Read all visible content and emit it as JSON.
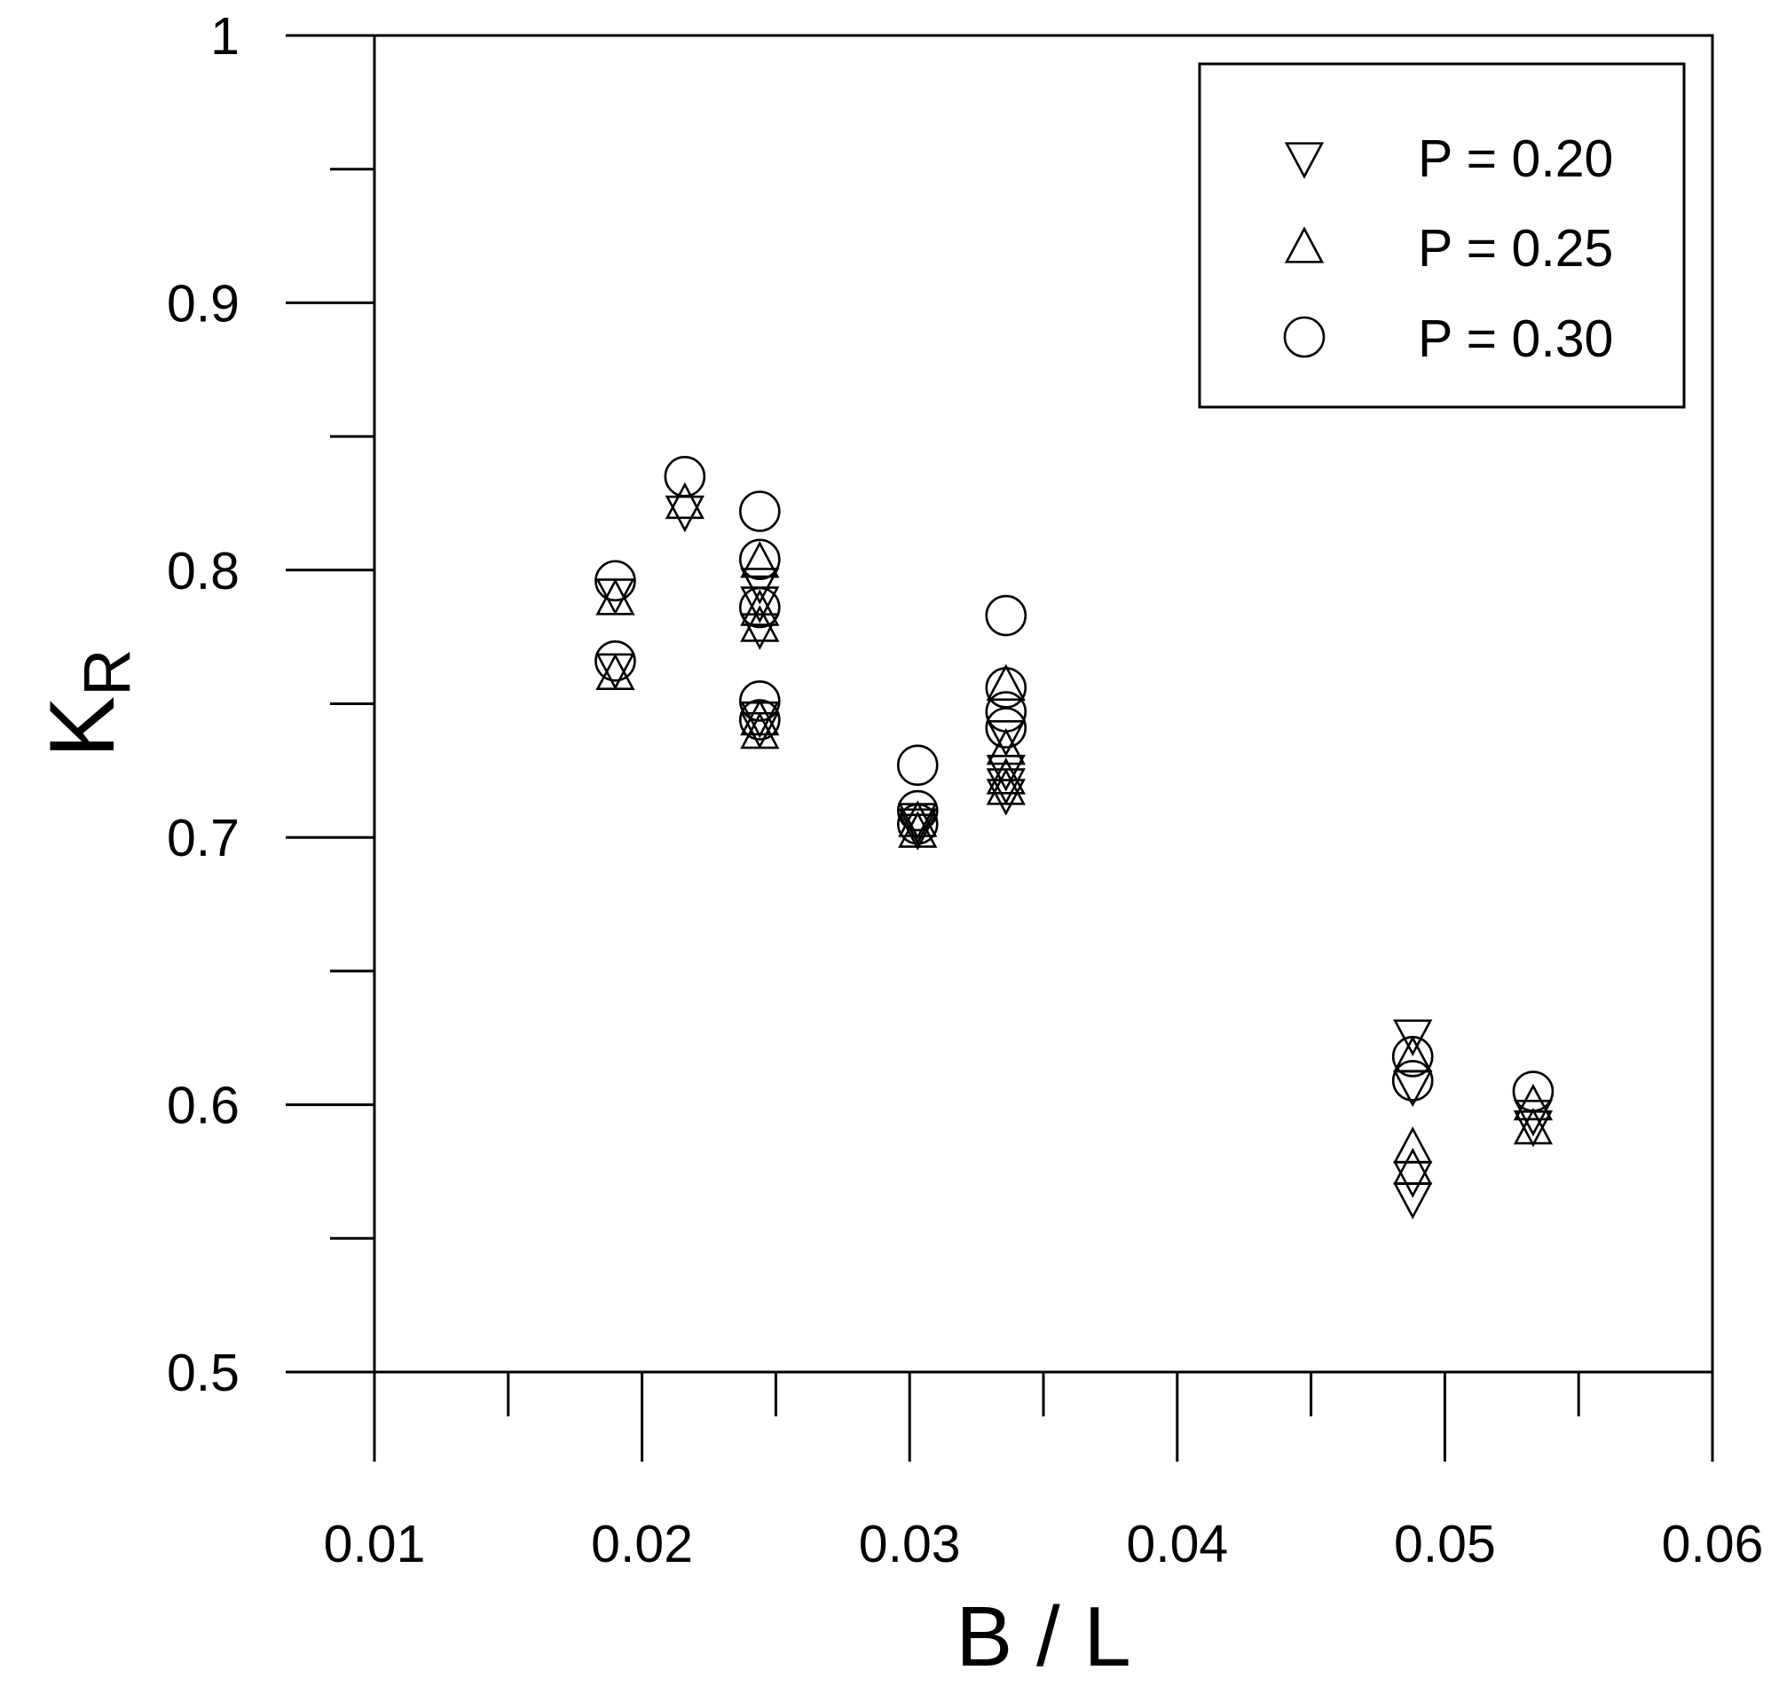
{
  "chart_data": {
    "type": "scatter",
    "title": "",
    "xlabel": "B / L",
    "ylabel": {
      "main": "K",
      "subscript": "R"
    },
    "xlim": [
      0.01,
      0.06
    ],
    "ylim": [
      0.5,
      1.0
    ],
    "x_ticks": [
      "0.01",
      "0.02",
      "0.03",
      "0.04",
      "0.05",
      "0.06"
    ],
    "y_ticks": [
      "0.5",
      "0.6",
      "0.7",
      "0.8",
      "0.9",
      "1"
    ],
    "grid": false,
    "legend_position": "top-right",
    "series": [
      {
        "name": "P = 0.20",
        "marker": "triangle-down",
        "points": [
          [
            0.019,
            0.791
          ],
          [
            0.019,
            0.763
          ],
          [
            0.0216,
            0.822
          ],
          [
            0.0244,
            0.795
          ],
          [
            0.0244,
            0.788
          ],
          [
            0.0244,
            0.778
          ],
          [
            0.0244,
            0.745
          ],
          [
            0.0244,
            0.741
          ],
          [
            0.0303,
            0.707
          ],
          [
            0.0303,
            0.705
          ],
          [
            0.0303,
            0.703
          ],
          [
            0.0336,
            0.738
          ],
          [
            0.0336,
            0.725
          ],
          [
            0.0336,
            0.72
          ],
          [
            0.0336,
            0.716
          ],
          [
            0.0488,
            0.626
          ],
          [
            0.0488,
            0.607
          ],
          [
            0.0488,
            0.573
          ],
          [
            0.0488,
            0.565
          ],
          [
            0.0533,
            0.596
          ],
          [
            0.0533,
            0.592
          ]
        ]
      },
      {
        "name": "P = 0.25",
        "marker": "triangle-up",
        "points": [
          [
            0.019,
            0.789
          ],
          [
            0.019,
            0.761
          ],
          [
            0.0216,
            0.825
          ],
          [
            0.0244,
            0.803
          ],
          [
            0.0244,
            0.785
          ],
          [
            0.0244,
            0.779
          ],
          [
            0.0244,
            0.744
          ],
          [
            0.0244,
            0.739
          ],
          [
            0.0303,
            0.706
          ],
          [
            0.0303,
            0.702
          ],
          [
            0.0336,
            0.757
          ],
          [
            0.0336,
            0.733
          ],
          [
            0.0336,
            0.722
          ],
          [
            0.0336,
            0.718
          ],
          [
            0.0488,
            0.618
          ],
          [
            0.0488,
            0.584
          ],
          [
            0.0488,
            0.576
          ],
          [
            0.0533,
            0.6
          ],
          [
            0.0533,
            0.591
          ]
        ]
      },
      {
        "name": "P = 0.30",
        "marker": "circle",
        "points": [
          [
            0.019,
            0.796
          ],
          [
            0.019,
            0.766
          ],
          [
            0.0216,
            0.835
          ],
          [
            0.0244,
            0.822
          ],
          [
            0.0244,
            0.804
          ],
          [
            0.0244,
            0.786
          ],
          [
            0.0244,
            0.751
          ],
          [
            0.0244,
            0.744
          ],
          [
            0.0303,
            0.727
          ],
          [
            0.0303,
            0.71
          ],
          [
            0.0303,
            0.705
          ],
          [
            0.0336,
            0.783
          ],
          [
            0.0336,
            0.756
          ],
          [
            0.0336,
            0.747
          ],
          [
            0.0336,
            0.741
          ],
          [
            0.0488,
            0.618
          ],
          [
            0.0488,
            0.609
          ],
          [
            0.0533,
            0.605
          ]
        ]
      }
    ]
  }
}
